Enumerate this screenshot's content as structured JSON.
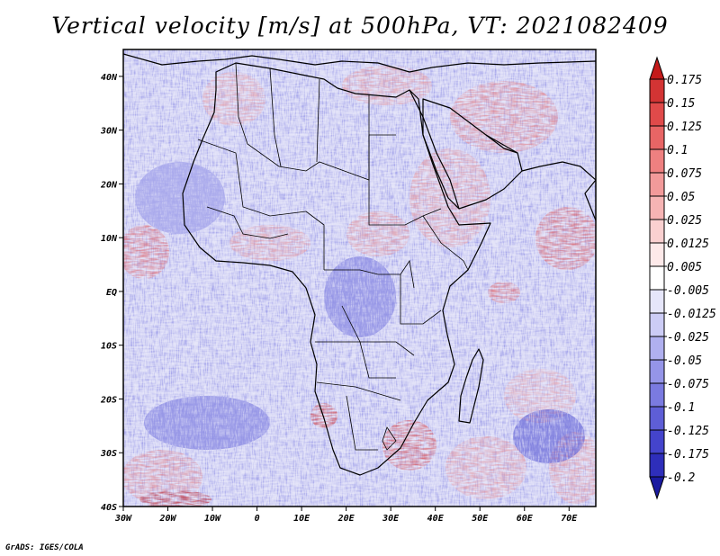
{
  "title": "Vertical velocity [m/s] at 500hPa, VT: 2021082409",
  "credit": "GrADS: IGES/COLA",
  "map": {
    "lon_labels": [
      "30W",
      "20W",
      "10W",
      "0",
      "10E",
      "20E",
      "30E",
      "40E",
      "50E",
      "60E",
      "70E"
    ],
    "lat_labels": [
      "40N",
      "30N",
      "20N",
      "10N",
      "EQ",
      "10S",
      "20S",
      "30S",
      "40S"
    ],
    "lon_range": [
      -30,
      76
    ],
    "lat_range": [
      -40,
      45
    ],
    "colors": {
      "positive": "#e05a5a",
      "negative": "#6a6ae6",
      "coastline": "#000000"
    }
  },
  "colorbar": {
    "labels": [
      "0.175",
      "0.15",
      "0.125",
      "0.1",
      "0.075",
      "0.05",
      "0.025",
      "0.0125",
      "0.005",
      "-0.005",
      "-0.0125",
      "-0.025",
      "-0.05",
      "-0.075",
      "-0.1",
      "-0.125",
      "-0.175",
      "-0.2"
    ],
    "colors": [
      "#c41a1a",
      "#d33434",
      "#e04a4a",
      "#e86565",
      "#ee8080",
      "#f29a9a",
      "#f6b4b4",
      "#fad0d0",
      "#fde9e9",
      "#ffffff",
      "#e6e6fa",
      "#ccccf5",
      "#b0b0ef",
      "#9595e8",
      "#7a7ae0",
      "#5e5ed6",
      "#4444cc",
      "#2e2eba",
      "#1a1aa0"
    ]
  }
}
